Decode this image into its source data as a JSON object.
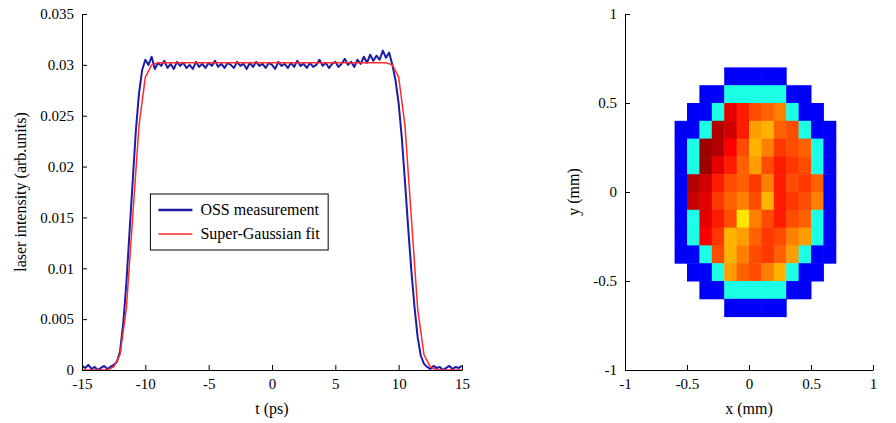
{
  "chart_data": [
    {
      "type": "line",
      "xlabel": "t (ps)",
      "ylabel": "laser intensity (arb.units)",
      "xlim": [
        -15,
        15
      ],
      "xticks": [
        -15,
        -10,
        -5,
        0,
        5,
        10,
        15
      ],
      "ylim": [
        0,
        0.035
      ],
      "yticks": [
        0,
        0.005,
        0.01,
        0.015,
        0.02,
        0.025,
        0.03,
        0.035
      ],
      "legend": "center",
      "series": [
        {
          "name": "OSS measurement",
          "color": "#1c1ca6",
          "x": [
            -15,
            -14.75,
            -14.5,
            -14.25,
            -14,
            -13.75,
            -13.5,
            -13.25,
            -13,
            -12.75,
            -12.5,
            -12.25,
            -12,
            -11.75,
            -11.5,
            -11.25,
            -11,
            -10.75,
            -10.5,
            -10.25,
            -10,
            -9.75,
            -9.5,
            -9.25,
            -9,
            -8.75,
            -8.5,
            -8.25,
            -8,
            -7.75,
            -7.5,
            -7.25,
            -7,
            -6.75,
            -6.5,
            -6.25,
            -6,
            -5.75,
            -5.5,
            -5.25,
            -5,
            -4.75,
            -4.5,
            -4.25,
            -4,
            -3.75,
            -3.5,
            -3.25,
            -3,
            -2.75,
            -2.5,
            -2.25,
            -2,
            -1.75,
            -1.5,
            -1.25,
            -1,
            -0.75,
            -0.5,
            -0.25,
            0,
            0.25,
            0.5,
            0.75,
            1,
            1.25,
            1.5,
            1.75,
            2,
            2.25,
            2.5,
            2.75,
            3,
            3.25,
            3.5,
            3.75,
            4,
            4.25,
            4.5,
            4.75,
            5,
            5.25,
            5.5,
            5.75,
            6,
            6.25,
            6.5,
            6.75,
            7,
            7.25,
            7.5,
            7.75,
            8,
            8.25,
            8.5,
            8.75,
            9,
            9.25,
            9.5,
            9.75,
            10,
            10.25,
            10.5,
            10.75,
            11,
            11.25,
            11.5,
            11.75,
            12,
            12.25,
            12.5,
            12.75,
            13,
            13.25,
            13.5,
            13.75,
            14,
            14.25,
            14.5,
            14.75,
            15
          ],
          "values": [
            0.0004,
            0.0002,
            0.0005,
            0.0001,
            0.0003,
            0,
            0.0002,
            0.0004,
            0.0001,
            0.0003,
            0.0005,
            0.0008,
            0.0018,
            0.0045,
            0.0085,
            0.0135,
            0.0185,
            0.0235,
            0.0272,
            0.0295,
            0.0305,
            0.03,
            0.0308,
            0.0296,
            0.0302,
            0.0299,
            0.0304,
            0.0297,
            0.0301,
            0.0296,
            0.0303,
            0.0299,
            0.0302,
            0.0297,
            0.03,
            0.0296,
            0.0303,
            0.0298,
            0.0301,
            0.0297,
            0.0302,
            0.0299,
            0.0304,
            0.0298,
            0.0301,
            0.0297,
            0.0302,
            0.03,
            0.0297,
            0.0303,
            0.0299,
            0.0301,
            0.0296,
            0.0302,
            0.0298,
            0.0303,
            0.0299,
            0.0301,
            0.0297,
            0.0302,
            0.03,
            0.0296,
            0.0303,
            0.0299,
            0.0301,
            0.0297,
            0.0302,
            0.0298,
            0.0304,
            0.0299,
            0.0301,
            0.0297,
            0.0302,
            0.0298,
            0.03,
            0.0305,
            0.0299,
            0.0302,
            0.0297,
            0.0301,
            0.0303,
            0.0298,
            0.0301,
            0.0306,
            0.03,
            0.0303,
            0.0298,
            0.0305,
            0.0301,
            0.0308,
            0.0302,
            0.031,
            0.0304,
            0.0309,
            0.0305,
            0.0314,
            0.0307,
            0.0312,
            0.03,
            0.0285,
            0.0262,
            0.0228,
            0.0185,
            0.014,
            0.0098,
            0.0062,
            0.0032,
            0.0014,
            0.0006,
            0.0003,
            0.0001,
            0.0004,
            0.0002,
            0.0003,
            0,
            0.0002,
            0.0004,
            0.0001,
            0.0003,
            0.0002,
            0.0004
          ]
        },
        {
          "name": "Super-Gaussian fit",
          "color": "#ff2a2a",
          "x": [
            -15,
            -13,
            -12.5,
            -12,
            -11.5,
            -11,
            -10.5,
            -10,
            -9.5,
            -9,
            -5,
            0,
            5,
            9,
            9.5,
            10,
            10.5,
            11,
            11.5,
            12,
            12.5,
            13,
            15
          ],
          "values": [
            0,
            0,
            0.0003,
            0.0015,
            0.006,
            0.015,
            0.024,
            0.0288,
            0.03,
            0.0302,
            0.0302,
            0.0302,
            0.0302,
            0.0302,
            0.03,
            0.0288,
            0.024,
            0.015,
            0.006,
            0.0015,
            0.0003,
            0,
            0
          ]
        }
      ]
    },
    {
      "type": "heatmap",
      "xlabel": "x (mm)",
      "ylabel": "y (mm)",
      "xlim": [
        -1,
        1
      ],
      "xticks": [
        -1,
        -0.5,
        0,
        0.5,
        1
      ],
      "ylim": [
        -1,
        1
      ],
      "yticks": [
        -1,
        -0.5,
        0,
        0.5,
        1
      ],
      "zlim": [
        0,
        1
      ],
      "x": [
        -0.65,
        -0.55,
        -0.45,
        -0.35,
        -0.25,
        -0.15,
        -0.05,
        0.05,
        0.15,
        0.25,
        0.35,
        0.45,
        0.55,
        0.65,
        0.75
      ],
      "y": [
        0.65,
        0.55,
        0.45,
        0.35,
        0.25,
        0.15,
        0.05,
        -0.05,
        -0.15,
        -0.25,
        -0.35,
        -0.45,
        -0.55,
        -0.65
      ],
      "z": [
        [
          null,
          null,
          null,
          null,
          null,
          0.12,
          0.12,
          0.12,
          0.12,
          0.12,
          null,
          null,
          null,
          null,
          null
        ],
        [
          null,
          null,
          null,
          0.12,
          0.12,
          0.4,
          0.4,
          0.4,
          0.4,
          0.4,
          0.12,
          0.12,
          null,
          null,
          null
        ],
        [
          null,
          null,
          0.12,
          0.12,
          0.4,
          0.9,
          0.85,
          0.8,
          0.78,
          0.75,
          0.4,
          0.12,
          0.12,
          null,
          null
        ],
        [
          null,
          0.12,
          0.12,
          0.4,
          0.95,
          0.92,
          0.85,
          0.72,
          0.7,
          0.78,
          0.8,
          0.4,
          0.12,
          0.12,
          null
        ],
        [
          null,
          0.12,
          0.4,
          0.97,
          0.95,
          0.88,
          0.8,
          0.7,
          0.75,
          0.82,
          0.8,
          0.78,
          0.4,
          0.12,
          null
        ],
        [
          null,
          0.12,
          0.4,
          0.97,
          0.9,
          0.85,
          0.78,
          0.72,
          0.8,
          0.85,
          0.82,
          0.8,
          0.4,
          0.12,
          null
        ],
        [
          null,
          0.12,
          0.95,
          0.92,
          0.85,
          0.8,
          0.78,
          0.82,
          0.75,
          0.85,
          0.8,
          0.82,
          0.78,
          0.12,
          null
        ],
        [
          null,
          0.12,
          0.93,
          0.9,
          0.82,
          0.78,
          0.75,
          0.8,
          0.7,
          0.85,
          0.82,
          0.8,
          0.75,
          0.12,
          null
        ],
        [
          null,
          0.12,
          0.4,
          0.9,
          0.85,
          0.8,
          0.65,
          0.75,
          0.8,
          0.85,
          0.8,
          0.78,
          0.4,
          0.12,
          null
        ],
        [
          null,
          0.12,
          0.4,
          0.88,
          0.82,
          0.7,
          0.72,
          0.78,
          0.82,
          0.8,
          0.75,
          0.72,
          0.4,
          0.12,
          null
        ],
        [
          null,
          0.12,
          0.12,
          0.4,
          0.8,
          0.7,
          0.75,
          0.8,
          0.82,
          0.78,
          0.72,
          0.4,
          0.12,
          0.12,
          null
        ],
        [
          null,
          null,
          0.12,
          0.12,
          0.4,
          0.72,
          0.78,
          0.8,
          0.75,
          0.7,
          0.4,
          0.12,
          0.12,
          null,
          null
        ],
        [
          null,
          null,
          null,
          0.12,
          0.12,
          0.4,
          0.4,
          0.4,
          0.4,
          0.4,
          0.12,
          0.12,
          null,
          null,
          null
        ],
        [
          null,
          null,
          null,
          null,
          null,
          0.12,
          0.12,
          0.12,
          0.12,
          0.12,
          null,
          null,
          null,
          null,
          null
        ]
      ]
    }
  ]
}
